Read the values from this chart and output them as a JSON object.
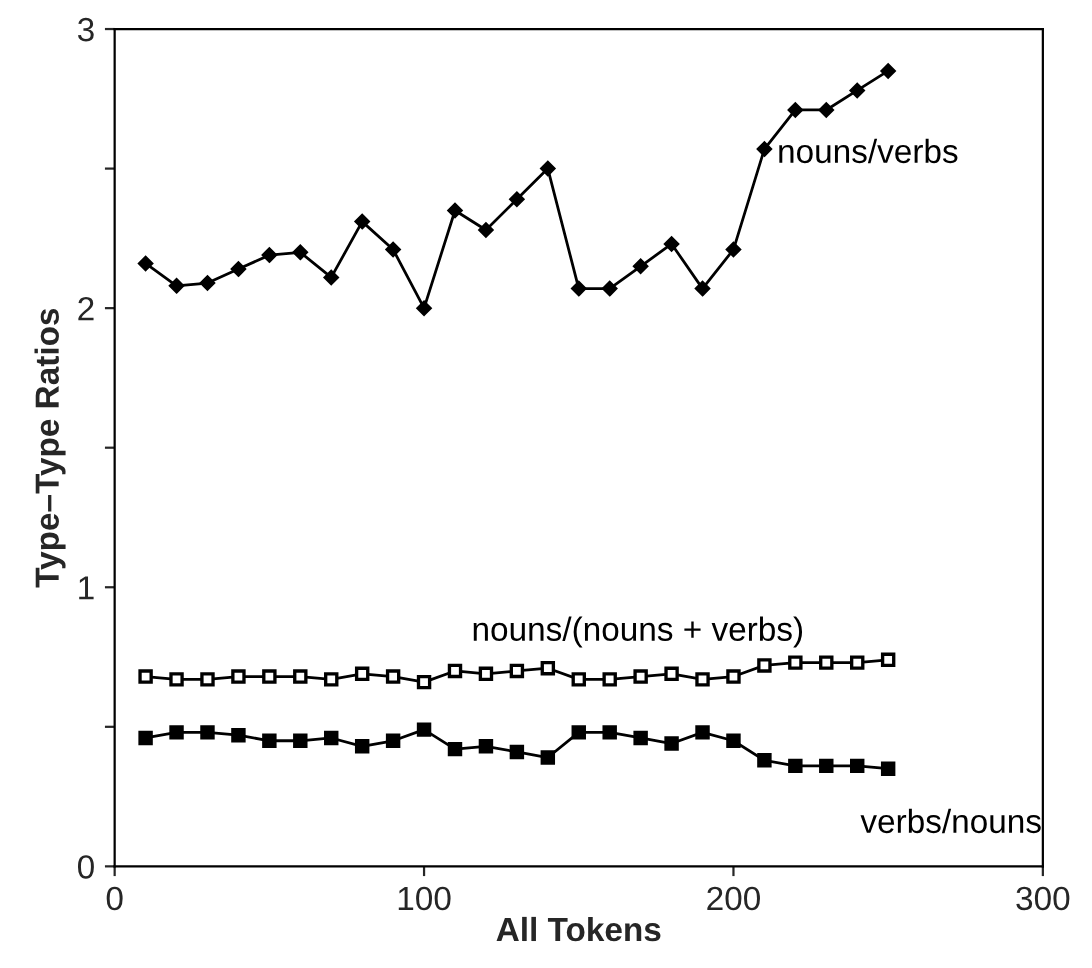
{
  "chart_data": {
    "type": "line",
    "xlabel": "All Tokens",
    "ylabel": "Type–Type Ratios",
    "x": [
      10,
      20,
      30,
      40,
      50,
      60,
      70,
      80,
      90,
      100,
      110,
      120,
      130,
      140,
      150,
      160,
      170,
      180,
      190,
      200,
      210,
      220,
      230,
      240,
      250
    ],
    "xlim": [
      0,
      300
    ],
    "xticks": [
      0,
      100,
      200,
      300
    ],
    "ylim": [
      0,
      3
    ],
    "yticks": [
      0,
      {
        "value": 0.5,
        "label": null
      },
      1,
      {
        "value": 1.5,
        "label": null
      },
      2,
      {
        "value": 2.5,
        "label": null
      },
      3
    ],
    "grid": false,
    "legend": false,
    "series": [
      {
        "name": "nouns/verbs",
        "color": "#000000",
        "marker": "diamond",
        "values": [
          2.16,
          2.08,
          2.09,
          2.14,
          2.19,
          2.2,
          2.11,
          2.31,
          2.21,
          2.0,
          2.35,
          2.28,
          2.39,
          2.5,
          2.07,
          2.07,
          2.15,
          2.23,
          2.07,
          2.21,
          2.57,
          2.71,
          2.71,
          2.78,
          2.85
        ]
      },
      {
        "name": "nouns/(nouns + verbs)",
        "color": "#000000",
        "marker": "square",
        "values": [
          0.68,
          0.67,
          0.67,
          0.68,
          0.68,
          0.68,
          0.67,
          0.69,
          0.68,
          0.66,
          0.7,
          0.69,
          0.7,
          0.71,
          0.67,
          0.67,
          0.68,
          0.69,
          0.67,
          0.68,
          0.72,
          0.73,
          0.73,
          0.73,
          0.74
        ]
      },
      {
        "name": "verbs/nouns",
        "color": "#000000",
        "marker": "square",
        "values": [
          0.46,
          0.48,
          0.48,
          0.47,
          0.45,
          0.45,
          0.46,
          0.43,
          0.45,
          0.49,
          0.42,
          0.43,
          0.41,
          0.39,
          0.48,
          0.48,
          0.46,
          0.44,
          0.48,
          0.45,
          0.38,
          0.36,
          0.36,
          0.36,
          0.35
        ]
      }
    ]
  }
}
